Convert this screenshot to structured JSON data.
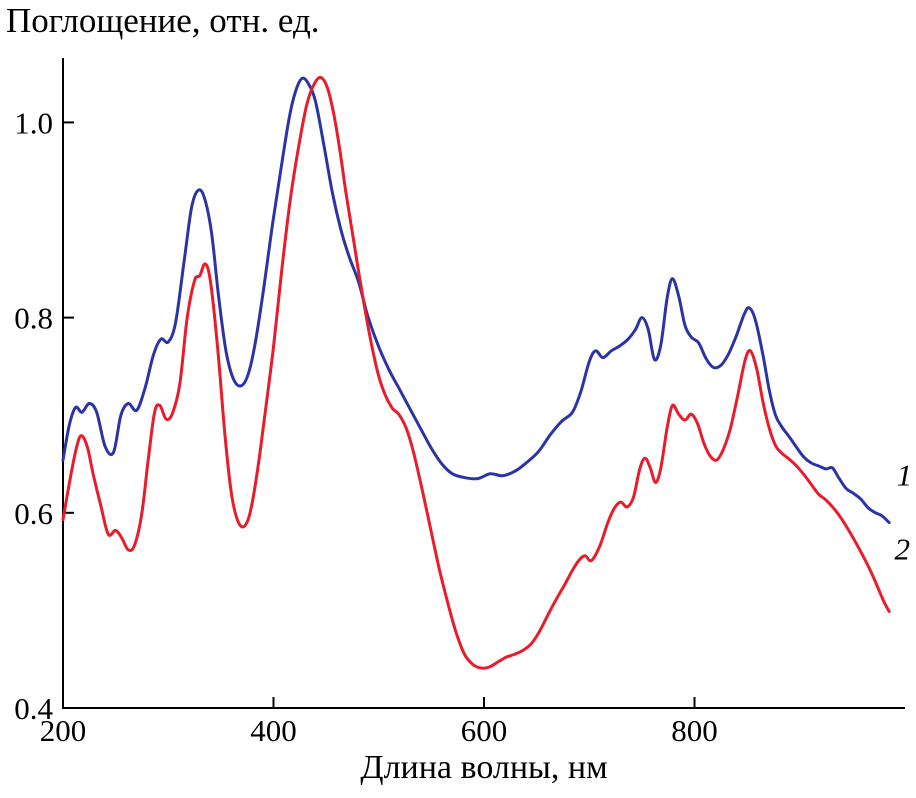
{
  "chart_data": {
    "type": "line",
    "title": "",
    "ylabel": "Поглощение, отн. ед.",
    "xlabel": "Длина волны, нм",
    "xlim": [
      200,
      1000
    ],
    "ylim": [
      0.4,
      1.066
    ],
    "grid": false,
    "legend_position": "curve-end-labels",
    "axis_color": "#000000",
    "xticks": {
      "values": [
        200,
        400,
        600,
        800
      ],
      "labels": [
        "200",
        "400",
        "600",
        "800"
      ]
    },
    "yticks": {
      "values": [
        0.4,
        0.6,
        0.8,
        1.0
      ],
      "labels": [
        "0.4",
        "0.6",
        "0.8",
        "1.0"
      ]
    },
    "series": [
      {
        "name": "1",
        "color": "#2b34a6",
        "label_x": 992,
        "label_y": 0.628,
        "points": [
          [
            200,
            0.654
          ],
          [
            206,
            0.69
          ],
          [
            212,
            0.708
          ],
          [
            218,
            0.703
          ],
          [
            225,
            0.712
          ],
          [
            232,
            0.703
          ],
          [
            240,
            0.668
          ],
          [
            248,
            0.662
          ],
          [
            255,
            0.7
          ],
          [
            262,
            0.712
          ],
          [
            270,
            0.705
          ],
          [
            278,
            0.728
          ],
          [
            286,
            0.762
          ],
          [
            293,
            0.778
          ],
          [
            300,
            0.775
          ],
          [
            307,
            0.795
          ],
          [
            315,
            0.857
          ],
          [
            322,
            0.912
          ],
          [
            328,
            0.93
          ],
          [
            334,
            0.924
          ],
          [
            341,
            0.888
          ],
          [
            348,
            0.82
          ],
          [
            355,
            0.765
          ],
          [
            362,
            0.737
          ],
          [
            369,
            0.73
          ],
          [
            376,
            0.742
          ],
          [
            383,
            0.776
          ],
          [
            391,
            0.832
          ],
          [
            399,
            0.895
          ],
          [
            407,
            0.952
          ],
          [
            415,
            1.005
          ],
          [
            421,
            1.032
          ],
          [
            427,
            1.045
          ],
          [
            433,
            1.04
          ],
          [
            440,
            1.021
          ],
          [
            448,
            0.976
          ],
          [
            456,
            0.928
          ],
          [
            464,
            0.89
          ],
          [
            472,
            0.862
          ],
          [
            481,
            0.836
          ],
          [
            490,
            0.8
          ],
          [
            500,
            0.77
          ],
          [
            510,
            0.746
          ],
          [
            520,
            0.726
          ],
          [
            530,
            0.706
          ],
          [
            540,
            0.686
          ],
          [
            550,
            0.666
          ],
          [
            560,
            0.65
          ],
          [
            570,
            0.64
          ],
          [
            582,
            0.636
          ],
          [
            594,
            0.635
          ],
          [
            606,
            0.64
          ],
          [
            618,
            0.638
          ],
          [
            630,
            0.643
          ],
          [
            641,
            0.652
          ],
          [
            652,
            0.663
          ],
          [
            663,
            0.68
          ],
          [
            674,
            0.694
          ],
          [
            684,
            0.703
          ],
          [
            692,
            0.724
          ],
          [
            700,
            0.755
          ],
          [
            706,
            0.766
          ],
          [
            713,
            0.759
          ],
          [
            721,
            0.766
          ],
          [
            729,
            0.771
          ],
          [
            737,
            0.778
          ],
          [
            744,
            0.788
          ],
          [
            750,
            0.8
          ],
          [
            756,
            0.788
          ],
          [
            762,
            0.757
          ],
          [
            768,
            0.772
          ],
          [
            774,
            0.82
          ],
          [
            779,
            0.84
          ],
          [
            785,
            0.822
          ],
          [
            791,
            0.792
          ],
          [
            797,
            0.78
          ],
          [
            804,
            0.774
          ],
          [
            811,
            0.758
          ],
          [
            818,
            0.749
          ],
          [
            825,
            0.751
          ],
          [
            832,
            0.762
          ],
          [
            840,
            0.782
          ],
          [
            847,
            0.803
          ],
          [
            852,
            0.81
          ],
          [
            858,
            0.797
          ],
          [
            865,
            0.762
          ],
          [
            871,
            0.726
          ],
          [
            877,
            0.7
          ],
          [
            883,
            0.688
          ],
          [
            890,
            0.678
          ],
          [
            897,
            0.667
          ],
          [
            904,
            0.657
          ],
          [
            911,
            0.651
          ],
          [
            918,
            0.648
          ],
          [
            925,
            0.645
          ],
          [
            931,
            0.646
          ],
          [
            937,
            0.636
          ],
          [
            944,
            0.625
          ],
          [
            951,
            0.62
          ],
          [
            958,
            0.614
          ],
          [
            965,
            0.605
          ],
          [
            972,
            0.6
          ],
          [
            978,
            0.597
          ],
          [
            985,
            0.59
          ]
        ]
      },
      {
        "name": "2",
        "color": "#e81c2b",
        "label_x": 990,
        "label_y": 0.552,
        "points": [
          [
            200,
            0.593
          ],
          [
            206,
            0.63
          ],
          [
            212,
            0.663
          ],
          [
            217,
            0.679
          ],
          [
            223,
            0.668
          ],
          [
            229,
            0.638
          ],
          [
            236,
            0.607
          ],
          [
            243,
            0.578
          ],
          [
            250,
            0.582
          ],
          [
            256,
            0.574
          ],
          [
            262,
            0.562
          ],
          [
            268,
            0.567
          ],
          [
            275,
            0.6
          ],
          [
            281,
            0.655
          ],
          [
            287,
            0.703
          ],
          [
            292,
            0.71
          ],
          [
            298,
            0.696
          ],
          [
            304,
            0.702
          ],
          [
            311,
            0.732
          ],
          [
            318,
            0.8
          ],
          [
            325,
            0.838
          ],
          [
            330,
            0.843
          ],
          [
            335,
            0.855
          ],
          [
            340,
            0.838
          ],
          [
            347,
            0.768
          ],
          [
            354,
            0.678
          ],
          [
            360,
            0.62
          ],
          [
            366,
            0.592
          ],
          [
            372,
            0.586
          ],
          [
            378,
            0.601
          ],
          [
            385,
            0.645
          ],
          [
            392,
            0.702
          ],
          [
            400,
            0.77
          ],
          [
            408,
            0.85
          ],
          [
            416,
            0.921
          ],
          [
            424,
            0.976
          ],
          [
            432,
            1.02
          ],
          [
            439,
            1.04
          ],
          [
            445,
            1.046
          ],
          [
            451,
            1.036
          ],
          [
            457,
            1.01
          ],
          [
            463,
            0.972
          ],
          [
            469,
            0.927
          ],
          [
            476,
            0.88
          ],
          [
            483,
            0.833
          ],
          [
            491,
            0.784
          ],
          [
            499,
            0.744
          ],
          [
            506,
            0.721
          ],
          [
            513,
            0.707
          ],
          [
            519,
            0.701
          ],
          [
            526,
            0.687
          ],
          [
            533,
            0.662
          ],
          [
            541,
            0.625
          ],
          [
            549,
            0.585
          ],
          [
            557,
            0.545
          ],
          [
            565,
            0.51
          ],
          [
            573,
            0.479
          ],
          [
            581,
            0.456
          ],
          [
            589,
            0.445
          ],
          [
            597,
            0.441
          ],
          [
            605,
            0.442
          ],
          [
            613,
            0.447
          ],
          [
            621,
            0.452
          ],
          [
            629,
            0.455
          ],
          [
            637,
            0.459
          ],
          [
            645,
            0.466
          ],
          [
            653,
            0.479
          ],
          [
            661,
            0.496
          ],
          [
            669,
            0.512
          ],
          [
            677,
            0.527
          ],
          [
            684,
            0.541
          ],
          [
            690,
            0.551
          ],
          [
            696,
            0.556
          ],
          [
            702,
            0.551
          ],
          [
            710,
            0.566
          ],
          [
            718,
            0.591
          ],
          [
            724,
            0.605
          ],
          [
            730,
            0.611
          ],
          [
            736,
            0.606
          ],
          [
            742,
            0.616
          ],
          [
            748,
            0.645
          ],
          [
            753,
            0.656
          ],
          [
            758,
            0.646
          ],
          [
            763,
            0.631
          ],
          [
            768,
            0.646
          ],
          [
            774,
            0.687
          ],
          [
            779,
            0.71
          ],
          [
            785,
            0.701
          ],
          [
            791,
            0.695
          ],
          [
            797,
            0.701
          ],
          [
            803,
            0.691
          ],
          [
            809,
            0.671
          ],
          [
            815,
            0.658
          ],
          [
            821,
            0.654
          ],
          [
            827,
            0.664
          ],
          [
            834,
            0.686
          ],
          [
            841,
            0.72
          ],
          [
            848,
            0.756
          ],
          [
            853,
            0.766
          ],
          [
            859,
            0.748
          ],
          [
            865,
            0.714
          ],
          [
            871,
            0.687
          ],
          [
            877,
            0.669
          ],
          [
            883,
            0.661
          ],
          [
            890,
            0.655
          ],
          [
            897,
            0.648
          ],
          [
            904,
            0.639
          ],
          [
            911,
            0.629
          ],
          [
            918,
            0.619
          ],
          [
            925,
            0.613
          ],
          [
            932,
            0.605
          ],
          [
            939,
            0.595
          ],
          [
            946,
            0.583
          ],
          [
            953,
            0.57
          ],
          [
            960,
            0.556
          ],
          [
            967,
            0.541
          ],
          [
            974,
            0.524
          ],
          [
            980,
            0.509
          ],
          [
            985,
            0.499
          ]
        ]
      }
    ]
  }
}
